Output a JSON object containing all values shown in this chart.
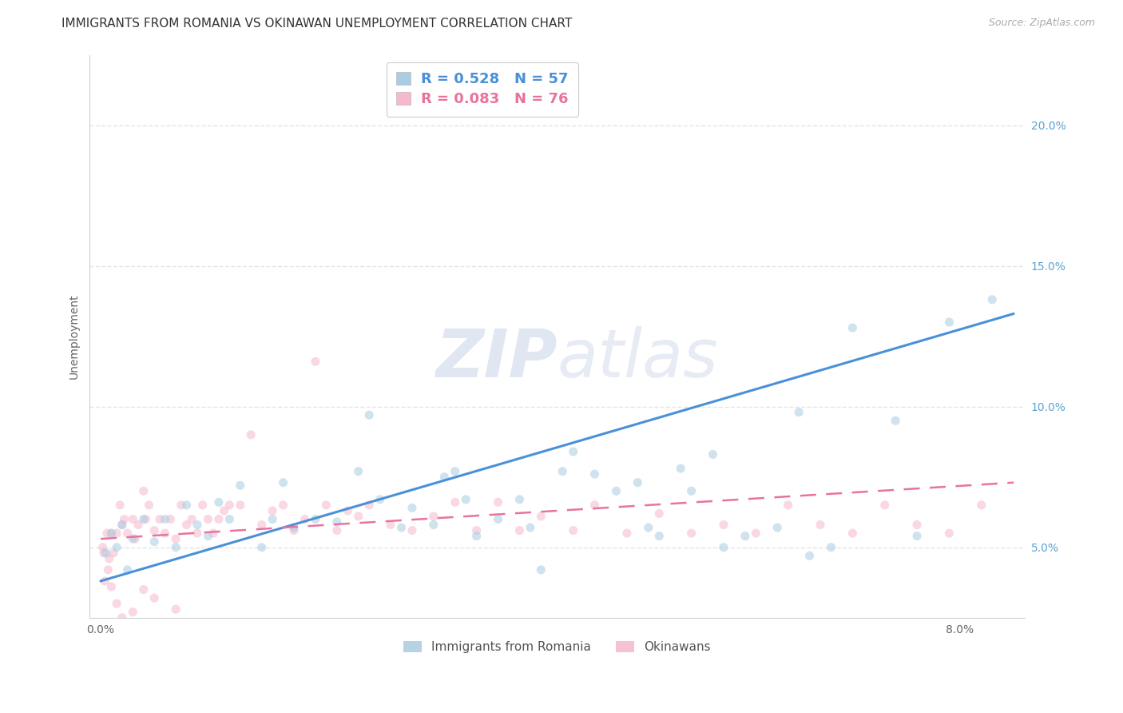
{
  "title": "IMMIGRANTS FROM ROMANIA VS OKINAWAN UNEMPLOYMENT CORRELATION CHART",
  "source": "Source: ZipAtlas.com",
  "ylabel": "Unemployment",
  "xlim": [
    -0.001,
    0.086
  ],
  "ylim": [
    0.025,
    0.225
  ],
  "x_ticks": [
    0.0,
    0.02,
    0.04,
    0.06,
    0.08
  ],
  "x_tick_labels": [
    "0.0%",
    "",
    "",
    "",
    "8.0%"
  ],
  "y_ticks": [
    0.05,
    0.1,
    0.15,
    0.2
  ],
  "y_tick_labels_right": [
    "5.0%",
    "10.0%",
    "15.0%",
    "20.0%"
  ],
  "legend_title_blue": "Immigrants from Romania",
  "legend_title_pink": "Okinawans",
  "blue_scatter_x": [
    0.0005,
    0.001,
    0.0015,
    0.002,
    0.0025,
    0.003,
    0.004,
    0.005,
    0.006,
    0.007,
    0.008,
    0.009,
    0.01,
    0.011,
    0.012,
    0.013,
    0.015,
    0.016,
    0.017,
    0.018,
    0.02,
    0.022,
    0.024,
    0.025,
    0.026,
    0.028,
    0.029,
    0.031,
    0.032,
    0.033,
    0.034,
    0.035,
    0.037,
    0.039,
    0.04,
    0.041,
    0.043,
    0.044,
    0.046,
    0.048,
    0.05,
    0.051,
    0.052,
    0.054,
    0.055,
    0.057,
    0.058,
    0.06,
    0.063,
    0.065,
    0.066,
    0.068,
    0.07,
    0.074,
    0.076,
    0.079,
    0.083
  ],
  "blue_scatter_y": [
    0.048,
    0.055,
    0.05,
    0.058,
    0.042,
    0.053,
    0.06,
    0.052,
    0.06,
    0.05,
    0.065,
    0.058,
    0.054,
    0.066,
    0.06,
    0.072,
    0.05,
    0.06,
    0.073,
    0.057,
    0.06,
    0.059,
    0.077,
    0.097,
    0.067,
    0.057,
    0.064,
    0.058,
    0.075,
    0.077,
    0.067,
    0.054,
    0.06,
    0.067,
    0.057,
    0.042,
    0.077,
    0.084,
    0.076,
    0.07,
    0.073,
    0.057,
    0.054,
    0.078,
    0.07,
    0.083,
    0.05,
    0.054,
    0.057,
    0.098,
    0.047,
    0.05,
    0.128,
    0.095,
    0.054,
    0.13,
    0.138
  ],
  "pink_scatter_x": [
    0.0002,
    0.0004,
    0.0006,
    0.0008,
    0.001,
    0.0012,
    0.0015,
    0.0018,
    0.002,
    0.0022,
    0.0025,
    0.003,
    0.0032,
    0.0035,
    0.004,
    0.0042,
    0.0045,
    0.005,
    0.0055,
    0.006,
    0.0065,
    0.007,
    0.0075,
    0.008,
    0.0085,
    0.009,
    0.0095,
    0.01,
    0.0105,
    0.011,
    0.0115,
    0.012,
    0.013,
    0.014,
    0.015,
    0.016,
    0.017,
    0.018,
    0.019,
    0.02,
    0.021,
    0.022,
    0.023,
    0.024,
    0.025,
    0.027,
    0.029,
    0.031,
    0.033,
    0.035,
    0.037,
    0.039,
    0.041,
    0.044,
    0.046,
    0.049,
    0.052,
    0.055,
    0.058,
    0.061,
    0.064,
    0.067,
    0.07,
    0.073,
    0.076,
    0.079,
    0.082,
    0.0003,
    0.0007,
    0.001,
    0.0015,
    0.002,
    0.003,
    0.004,
    0.005,
    0.007
  ],
  "pink_scatter_y": [
    0.05,
    0.038,
    0.055,
    0.046,
    0.055,
    0.048,
    0.055,
    0.065,
    0.058,
    0.06,
    0.055,
    0.06,
    0.053,
    0.058,
    0.07,
    0.06,
    0.065,
    0.056,
    0.06,
    0.055,
    0.06,
    0.053,
    0.065,
    0.058,
    0.06,
    0.055,
    0.065,
    0.06,
    0.055,
    0.06,
    0.063,
    0.065,
    0.065,
    0.09,
    0.058,
    0.063,
    0.065,
    0.056,
    0.06,
    0.116,
    0.065,
    0.056,
    0.063,
    0.061,
    0.065,
    0.058,
    0.056,
    0.061,
    0.066,
    0.056,
    0.066,
    0.056,
    0.061,
    0.056,
    0.065,
    0.055,
    0.062,
    0.055,
    0.058,
    0.055,
    0.065,
    0.058,
    0.055,
    0.065,
    0.058,
    0.055,
    0.065,
    0.048,
    0.042,
    0.036,
    0.03,
    0.025,
    0.027,
    0.035,
    0.032,
    0.028
  ],
  "blue_line_x": [
    0.0,
    0.085
  ],
  "blue_line_y": [
    0.038,
    0.133
  ],
  "pink_line_x": [
    0.0,
    0.085
  ],
  "pink_line_y": [
    0.053,
    0.073
  ],
  "blue_color": "#a8cce0",
  "pink_color": "#f5b8cc",
  "blue_line_color": "#4a90d9",
  "pink_line_color": "#e8739e",
  "grid_color": "#e5e5e5",
  "background_color": "#ffffff",
  "title_fontsize": 11,
  "axis_label_fontsize": 10,
  "tick_fontsize": 10,
  "scatter_size": 65,
  "scatter_alpha": 0.55,
  "right_tick_color": "#5ba3d0"
}
